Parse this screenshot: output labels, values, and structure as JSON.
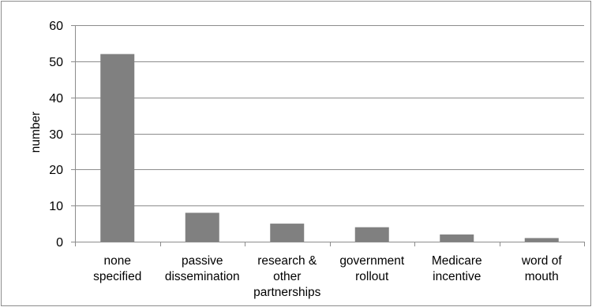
{
  "chart_data": {
    "type": "bar",
    "ylabel": "number",
    "xlabel": "",
    "ylim": [
      0,
      60
    ],
    "yticks": [
      0,
      10,
      20,
      30,
      40,
      50,
      60
    ],
    "grid": true,
    "categories": [
      [
        "none",
        "specified"
      ],
      [
        "passive",
        "dissemination"
      ],
      [
        "research &",
        "other",
        "partnerships"
      ],
      [
        "government",
        "rollout"
      ],
      [
        "Medicare",
        "incentive"
      ],
      [
        "word of",
        "mouth"
      ]
    ],
    "values": [
      52,
      8,
      5,
      4,
      2,
      1
    ],
    "bar_color": "#808080",
    "grid_color": "#8c8c8c"
  }
}
